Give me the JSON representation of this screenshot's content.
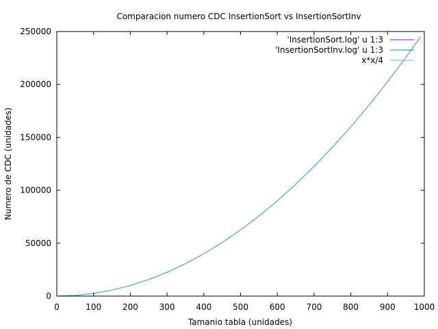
{
  "chart_data": {
    "type": "line",
    "title": "Comparacion numero CDC InsertionSort vs InsertionSortInv",
    "xlabel": "Tamanio tabla (unidades)",
    "ylabel": "Numero de CDC (unidades)",
    "xlim": [
      0,
      1000
    ],
    "ylim": [
      0,
      250000
    ],
    "x_ticks": [
      0,
      100,
      200,
      300,
      400,
      500,
      600,
      700,
      800,
      900,
      1000
    ],
    "y_ticks": [
      0,
      50000,
      100000,
      150000,
      200000,
      250000
    ],
    "x_tick_labels": [
      "0",
      "100",
      "200",
      "300",
      "400",
      "500",
      "600",
      "700",
      "800",
      "900",
      "1000"
    ],
    "y_tick_labels": [
      "0",
      "50000",
      "100000",
      "150000",
      "200000",
      "250000"
    ],
    "grid": false,
    "legend_position": "top-right",
    "x": [
      0,
      50,
      100,
      150,
      200,
      250,
      300,
      350,
      400,
      450,
      500,
      550,
      600,
      650,
      700,
      750,
      800,
      850,
      900,
      950,
      990
    ],
    "series": [
      {
        "name": "'InsertionSort.log' u 1:3",
        "color": "#9400d3",
        "values": [
          0,
          625,
          2500,
          5625,
          10000,
          15625,
          22500,
          30625,
          40000,
          50625,
          62500,
          75625,
          90000,
          105625,
          122500,
          140625,
          160000,
          180625,
          202500,
          225625,
          245025
        ]
      },
      {
        "name": "'InsertionSortInv.log' u 1:3",
        "color": "#009e73",
        "values": [
          0,
          625,
          2500,
          5625,
          10000,
          15625,
          22500,
          30625,
          40000,
          50625,
          62500,
          75625,
          90000,
          105625,
          122500,
          140625,
          160000,
          180625,
          202500,
          225625,
          245025
        ]
      },
      {
        "name": "x*x/4",
        "color": "#56b4e9",
        "values": [
          0,
          625,
          2500,
          5625,
          10000,
          15625,
          22500,
          30625,
          40000,
          50625,
          62500,
          75625,
          90000,
          105625,
          122500,
          140625,
          160000,
          180625,
          202500,
          225625,
          245025
        ]
      }
    ]
  }
}
